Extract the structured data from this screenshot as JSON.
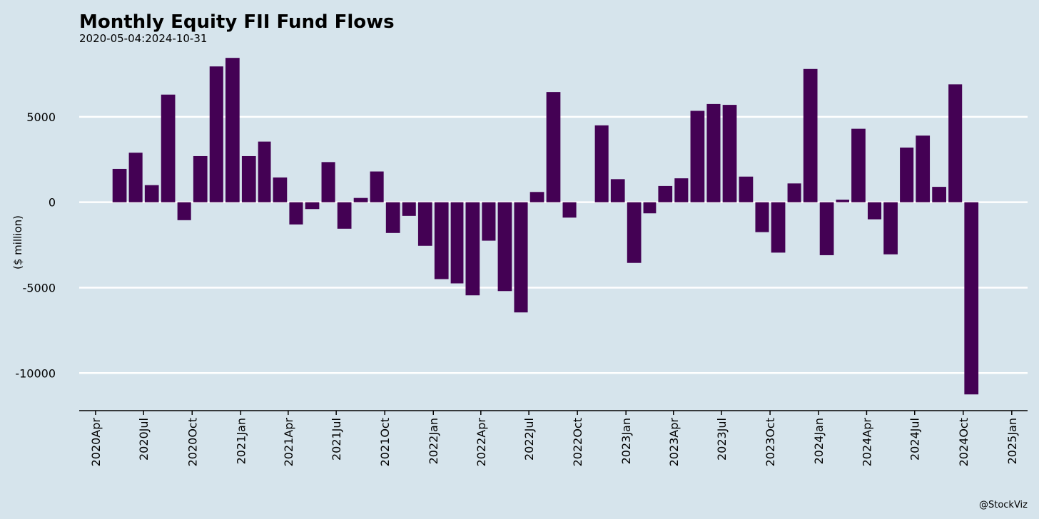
{
  "colors": {
    "background": "#d6e4ec",
    "bar": "#440154",
    "grid": "#ffffff",
    "axis": "#000000"
  },
  "credit": "@StockViz",
  "chart_data": {
    "type": "bar",
    "title": "Monthly Equity FII Fund Flows",
    "subtitle": "2020-05-04:2024-10-31",
    "xlabel": "",
    "ylabel": "($ million)",
    "xlim": [
      "2020-03-01",
      "2025-01-31"
    ],
    "ylim": [
      -12200,
      8500
    ],
    "x_ticks": [
      "2020Apr",
      "2020Jul",
      "2020Oct",
      "2021Jan",
      "2021Apr",
      "2021Jul",
      "2021Oct",
      "2022Jan",
      "2022Apr",
      "2022Jul",
      "2022Oct",
      "2023Jan",
      "2023Apr",
      "2023Jul",
      "2023Oct",
      "2024Jan",
      "2024Apr",
      "2024Jul",
      "2024Oct",
      "2025Jan"
    ],
    "y_ticks": [
      5000,
      0,
      -5000,
      -10000
    ],
    "grid": "horizontal",
    "legend": "none",
    "series": [
      {
        "months": [
          "2020-05",
          "2020-06",
          "2020-07",
          "2020-08",
          "2020-09",
          "2020-10",
          "2020-11",
          "2020-12",
          "2021-01",
          "2021-02",
          "2021-03",
          "2021-04",
          "2021-05",
          "2021-06",
          "2021-07",
          "2021-08",
          "2021-09",
          "2021-10",
          "2021-11",
          "2021-12",
          "2022-01",
          "2022-02",
          "2022-03",
          "2022-04",
          "2022-05",
          "2022-06",
          "2022-07",
          "2022-08",
          "2022-09",
          "2022-10",
          "2022-11",
          "2022-12",
          "2023-01",
          "2023-02",
          "2023-03",
          "2023-04",
          "2023-05",
          "2023-06",
          "2023-07",
          "2023-08",
          "2023-09",
          "2023-10",
          "2023-11",
          "2023-12",
          "2024-01",
          "2024-02",
          "2024-03",
          "2024-04",
          "2024-05",
          "2024-06",
          "2024-07",
          "2024-08",
          "2024-09",
          "2024-10"
        ],
        "values": [
          1950,
          2900,
          1000,
          6300,
          -1050,
          2700,
          7950,
          8450,
          2700,
          3550,
          1450,
          -1300,
          -400,
          2350,
          -1550,
          250,
          1800,
          -1800,
          -800,
          -2550,
          -4500,
          -4750,
          -5450,
          -2250,
          -5200,
          -6450,
          600,
          6450,
          -900,
          0,
          4500,
          1350,
          -3550,
          -650,
          950,
          1400,
          5350,
          5750,
          5700,
          1500,
          -1750,
          -2950,
          1100,
          7800,
          -3100,
          150,
          4300,
          -1000,
          -3050,
          3200,
          3900,
          900,
          6900,
          -11250
        ]
      }
    ]
  }
}
